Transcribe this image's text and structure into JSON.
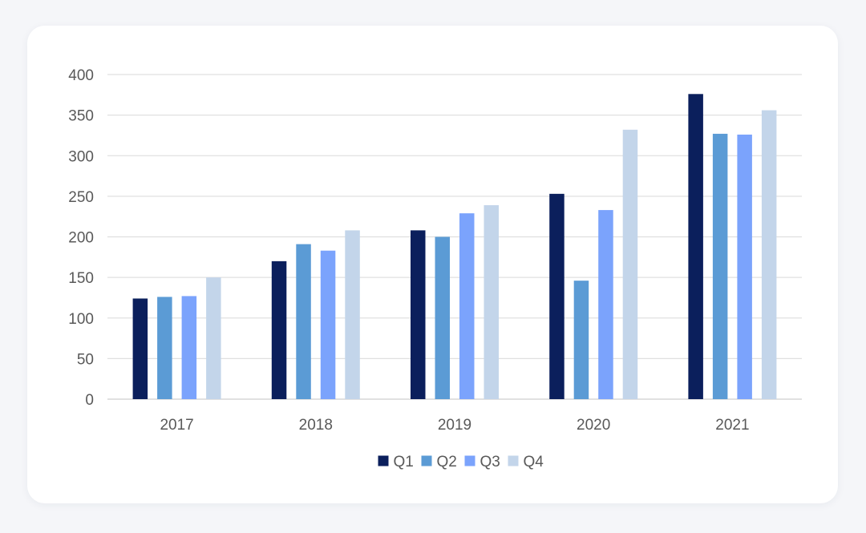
{
  "chart_data": {
    "type": "bar",
    "title": "",
    "xlabel": "",
    "ylabel": "",
    "categories": [
      "2017",
      "2018",
      "2019",
      "2020",
      "2021"
    ],
    "ylim": [
      0,
      400
    ],
    "yticks": [
      0,
      50,
      100,
      150,
      200,
      250,
      300,
      350,
      400
    ],
    "grid": true,
    "legend_position": "bottom",
    "series": [
      {
        "name": "Q1",
        "color": "#0b1f5c",
        "values": [
          124,
          170,
          208,
          253,
          376
        ]
      },
      {
        "name": "Q2",
        "color": "#5b9bd5",
        "values": [
          126,
          191,
          200,
          146,
          327
        ]
      },
      {
        "name": "Q3",
        "color": "#7ba3fc",
        "values": [
          127,
          183,
          229,
          233,
          326
        ]
      },
      {
        "name": "Q4",
        "color": "#c3d5ea",
        "values": [
          150,
          208,
          239,
          332,
          356
        ]
      }
    ]
  }
}
